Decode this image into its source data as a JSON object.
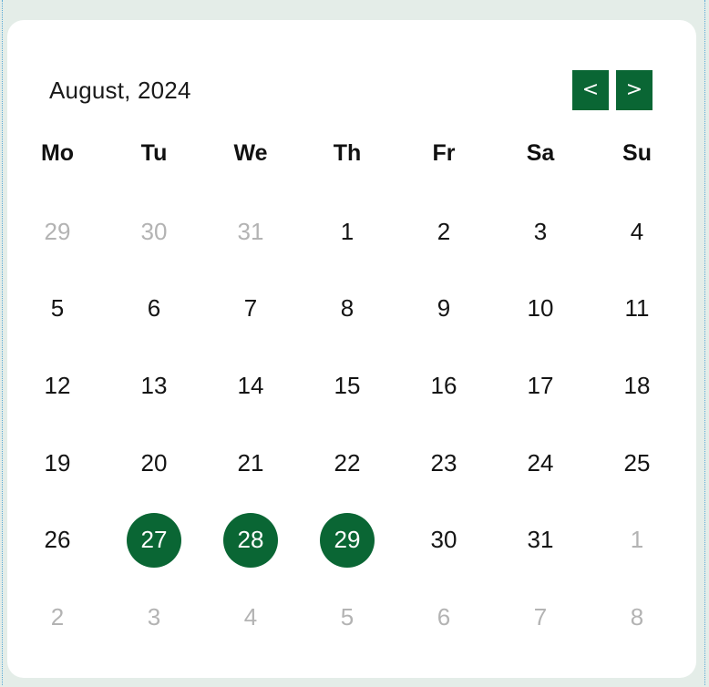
{
  "calendar": {
    "title": "August, 2024",
    "prev_label": "<",
    "next_label": ">",
    "accent_color": "#0a6634",
    "weekdays": [
      "Mo",
      "Tu",
      "We",
      "Th",
      "Fr",
      "Sa",
      "Su"
    ],
    "weeks": [
      [
        {
          "d": "29",
          "muted": true
        },
        {
          "d": "30",
          "muted": true
        },
        {
          "d": "31",
          "muted": true
        },
        {
          "d": "1"
        },
        {
          "d": "2"
        },
        {
          "d": "3"
        },
        {
          "d": "4"
        }
      ],
      [
        {
          "d": "5"
        },
        {
          "d": "6"
        },
        {
          "d": "7"
        },
        {
          "d": "8"
        },
        {
          "d": "9"
        },
        {
          "d": "10"
        },
        {
          "d": "11"
        }
      ],
      [
        {
          "d": "12"
        },
        {
          "d": "13"
        },
        {
          "d": "14"
        },
        {
          "d": "15"
        },
        {
          "d": "16"
        },
        {
          "d": "17"
        },
        {
          "d": "18"
        }
      ],
      [
        {
          "d": "19"
        },
        {
          "d": "20"
        },
        {
          "d": "21"
        },
        {
          "d": "22"
        },
        {
          "d": "23"
        },
        {
          "d": "24"
        },
        {
          "d": "25"
        }
      ],
      [
        {
          "d": "26"
        },
        {
          "d": "27",
          "selected": true
        },
        {
          "d": "28",
          "selected": true
        },
        {
          "d": "29",
          "selected": true
        },
        {
          "d": "30"
        },
        {
          "d": "31"
        },
        {
          "d": "1",
          "muted": true
        }
      ],
      [
        {
          "d": "2",
          "muted": true
        },
        {
          "d": "3",
          "muted": true
        },
        {
          "d": "4",
          "muted": true
        },
        {
          "d": "5",
          "muted": true
        },
        {
          "d": "6",
          "muted": true
        },
        {
          "d": "7",
          "muted": true
        },
        {
          "d": "8",
          "muted": true
        }
      ]
    ]
  }
}
